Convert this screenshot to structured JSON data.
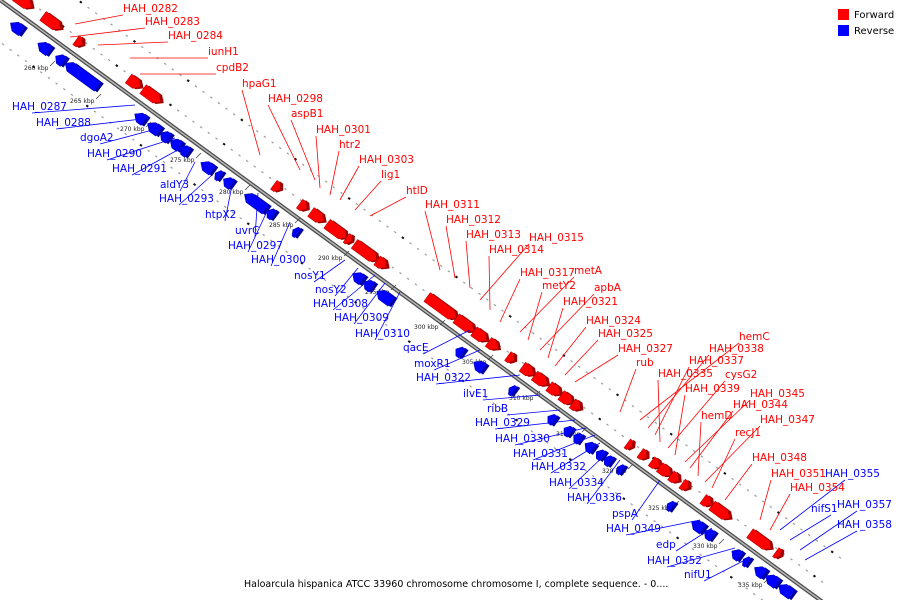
{
  "legend": [
    {
      "label": "Forward",
      "color": "#ff0000"
    },
    {
      "label": "Reverse",
      "color": "#0000ff"
    }
  ],
  "caption": "Haloarcula hispanica ATCC 33960 chromosome chromosome I, complete sequence. - 0....",
  "backbone_color": "#8a8a8a",
  "ticks": [
    "260 kbp",
    "265 kbp",
    "270 kbp",
    "275 kbp",
    "280 kbp",
    "285 kbp",
    "290 kbp",
    "295 kbp",
    "300 kbp",
    "305 kbp",
    "310 kbp",
    "315 kbp",
    "320 kbp",
    "325 kbp",
    "330 kbp",
    "335 kbp"
  ],
  "forward_labels": [
    "HAH_0282",
    "HAH_0283",
    "HAH_0284",
    "iunH1",
    "cpdB2",
    "hpaG1",
    "HAH_0298",
    "aspB1",
    "HAH_0301",
    "htr2",
    "HAH_0303",
    "lig1",
    "htlD",
    "HAH_0311",
    "HAH_0312",
    "HAH_0313",
    "HAH_0315",
    "HAH_0314",
    "HAH_0317",
    "metA",
    "metY2",
    "apbA",
    "HAH_0321",
    "HAH_0324",
    "HAH_0325",
    "HAH_0327",
    "rub",
    "hemC",
    "HAH_0338",
    "HAH_0337",
    "HAH_0335",
    "cysG2",
    "HAH_0339",
    "HAH_0345",
    "HAH_0344",
    "hemD",
    "HAH_0347",
    "recJ1",
    "HAH_0348",
    "HAH_0351",
    "HAH_0354"
  ],
  "reverse_labels": [
    "HAH_0287",
    "HAH_0288",
    "dgoA2",
    "HAH_0290",
    "HAH_0291",
    "aldY3",
    "HAH_0293",
    "htpX2",
    "uvrC",
    "HAH_0297",
    "HAH_0300",
    "nosY1",
    "nosY2",
    "HAH_0308",
    "HAH_0309",
    "HAH_0310",
    "qacE",
    "moxR1",
    "HAH_0322",
    "ilvE1",
    "ribB",
    "HAH_0329",
    "HAH_0330",
    "HAH_0331",
    "HAH_0332",
    "HAH_0334",
    "HAH_0336",
    "pspA",
    "HAH_0349",
    "edp",
    "HAH_0352",
    "nifU1",
    "HAH_0355",
    "nifS1",
    "HAH_0357",
    "HAH_0358"
  ]
}
